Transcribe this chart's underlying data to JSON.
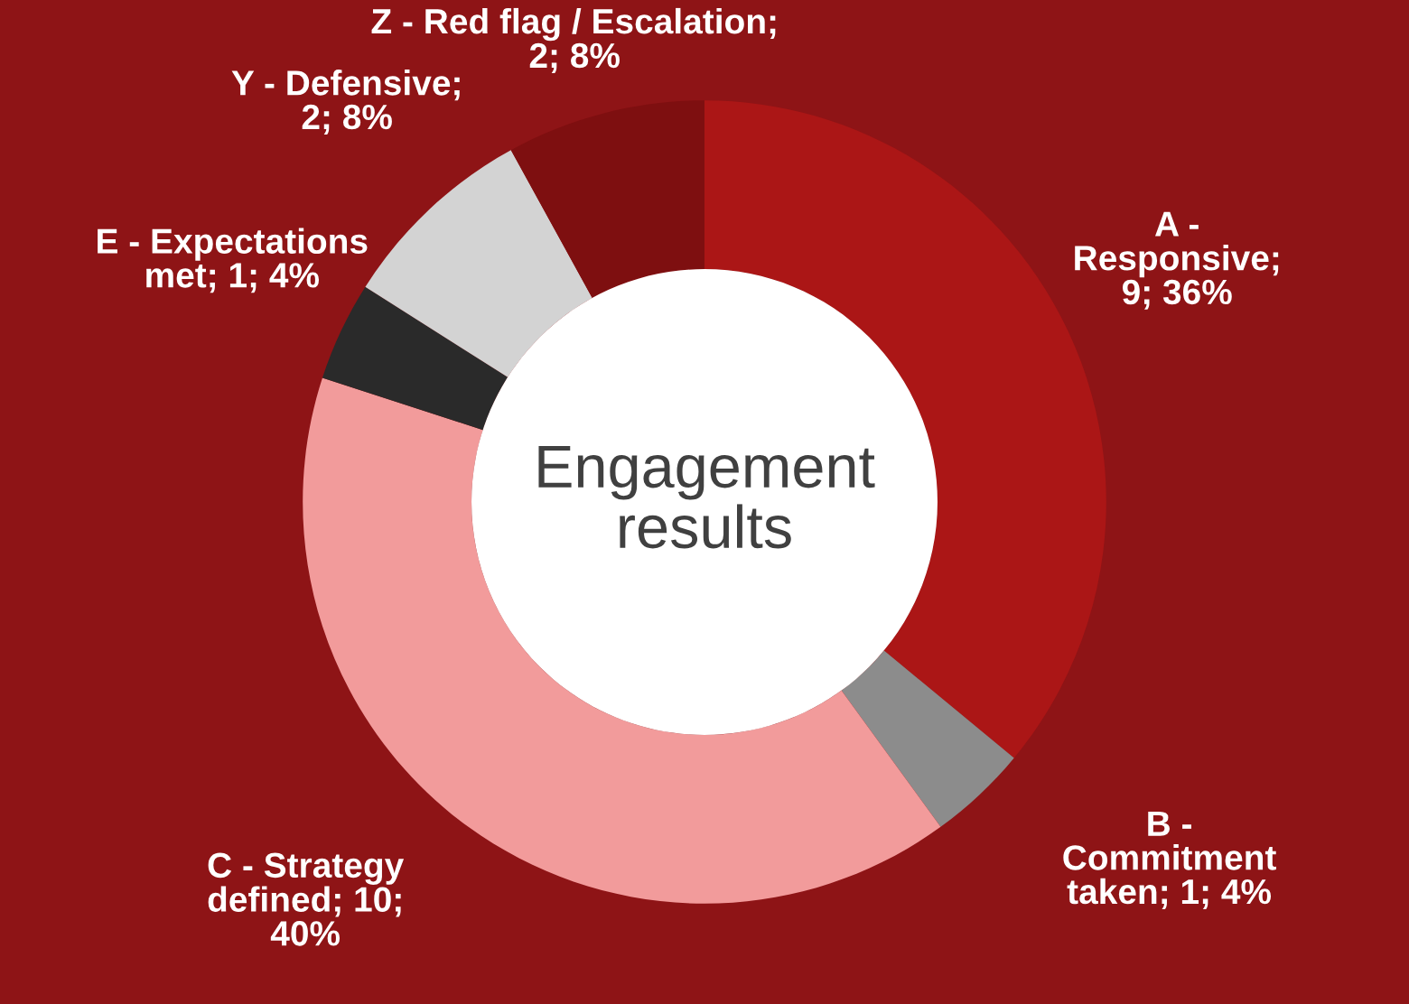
{
  "chart_data": {
    "type": "donut",
    "title": "Engagement\nresults",
    "categories": [
      "A -\nResponsive",
      "B -\nCommitment\ntaken",
      "C - Strategy\ndefined",
      "E - Expectations\nmet",
      "Y - Defensive",
      "Z - Red flag / Escalation"
    ],
    "values": [
      9,
      1,
      10,
      1,
      2,
      2
    ],
    "value_labels": [
      ";\n9; 36%",
      "; 1; 4%",
      "; 10;\n40%",
      "; 1; 4%",
      ";\n2; 8%",
      ";\n2; 8%"
    ],
    "colors": [
      "#ab1616",
      "#8c8c8c",
      "#f29b9b",
      "#2a2a2a",
      "#d3d3d3",
      "#7e0f10"
    ],
    "legend": false
  }
}
